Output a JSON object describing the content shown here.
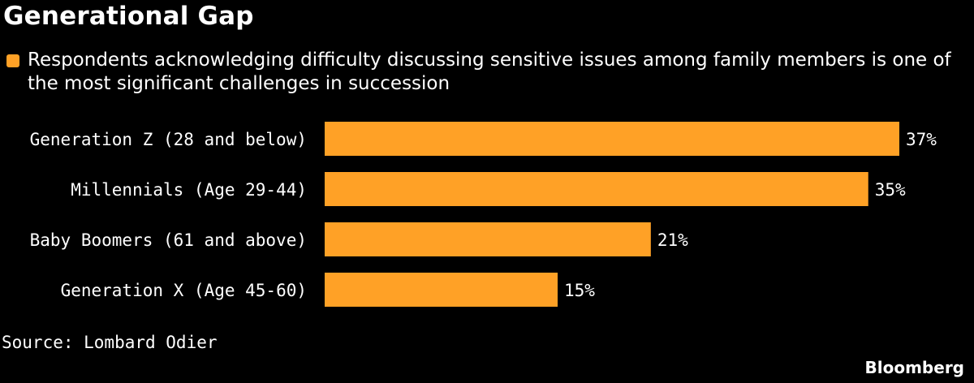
{
  "chart_data": {
    "type": "bar",
    "orientation": "horizontal",
    "title": "Generational Gap",
    "categories": [
      "Generation Z (28 and below)",
      "Millennials (Age 29-44)",
      "Baby Boomers (61 and above)",
      "Generation X (Age 45-60)"
    ],
    "series": [
      {
        "name": "Respondents acknowledging difficulty discussing sensitive issues among family members is one of the most significant challenges in succession",
        "values": [
          37,
          35,
          21,
          15
        ],
        "labels": [
          "37%",
          "35%",
          "21%",
          "15%"
        ],
        "color": "#FFA126"
      }
    ],
    "xlim": [
      0,
      37
    ],
    "grid": false,
    "legend_position": "top-left"
  },
  "source": "Source: Lombard Odier",
  "brand": "Bloomberg"
}
